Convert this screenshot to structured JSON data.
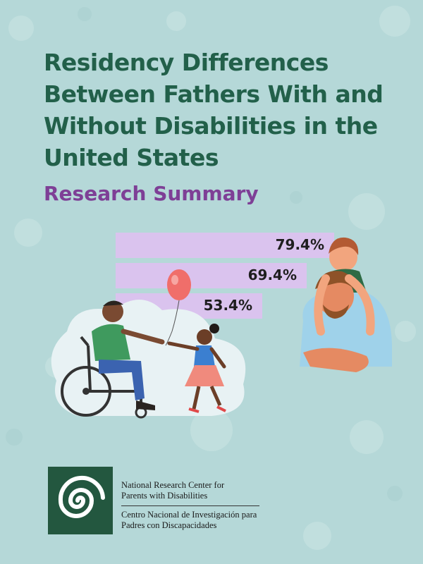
{
  "header": {
    "title": "Residency Differences Between Fathers With and Without Disabilities in the United States",
    "subtitle": "Research Summary"
  },
  "chart_data": {
    "type": "bar",
    "orientation": "horizontal",
    "values": [
      79.4,
      69.4,
      53.4
    ],
    "value_labels": [
      "79.4%",
      "69.4%",
      "53.4%"
    ],
    "bar_color": "#dac3ee"
  },
  "illustrations": {
    "left_scene_icon": "father-in-wheelchair-holding-hands-with-daughter-with-balloon",
    "right_scene_icon": "father-giving-child-piggyback"
  },
  "footer": {
    "logo_icon": "spiral-logo",
    "org_en_line1": "National Research Center for",
    "org_en_line2": "Parents with Disabilities",
    "org_es_line1": "Centro Nacional de Investigación para",
    "org_es_line2": "Padres con Discapacidades"
  },
  "colors": {
    "background": "#b5d8d8",
    "title": "#22604a",
    "subtitle": "#7e3f96",
    "logo_green": "#23573f"
  }
}
